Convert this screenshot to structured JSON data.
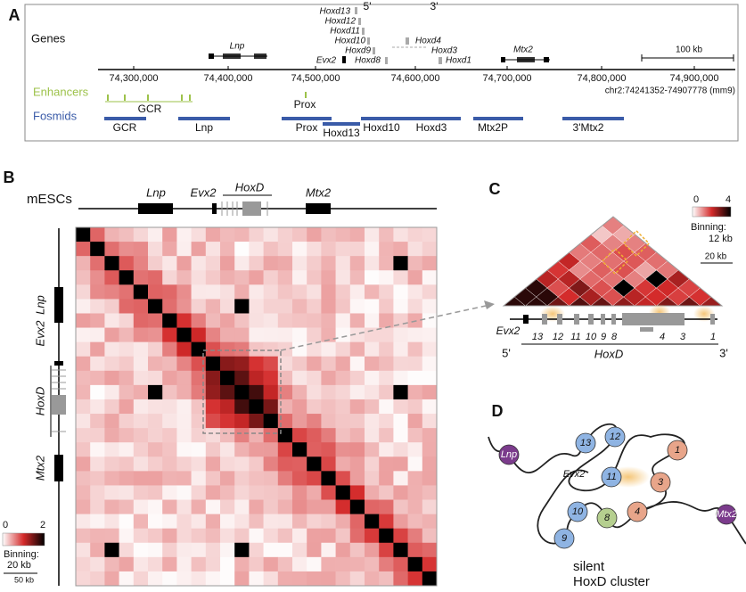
{
  "panel_a": {
    "label": "A",
    "genes_heading": "Genes",
    "genes": [
      "Lnp",
      "Hoxd13",
      "Hoxd12",
      "Hoxd11",
      "Hoxd10",
      "Hoxd9",
      "Hoxd8",
      "Evx2",
      "Hoxd4",
      "Hoxd3",
      "Hoxd1",
      "Mtx2"
    ],
    "five_prime": "5'",
    "three_prime": "3'",
    "scale_bar": "100 kb",
    "coordinates": [
      "74,300,000",
      "74,400,000",
      "74,500,000",
      "74,600,000",
      "74,700,000",
      "74,800,000",
      "74,900,000"
    ],
    "assembly": "chr2:74241352-74907778 (mm9)",
    "enhancers_heading": "Enhancers",
    "enhancers": [
      "GCR",
      "Prox"
    ],
    "fosmids_heading": "Fosmids",
    "fosmids": [
      "GCR",
      "Lnp",
      "Prox",
      "Hoxd13",
      "Hoxd10",
      "Hoxd3",
      "Mtx2P",
      "3'Mtx2"
    ]
  },
  "panel_b": {
    "label": "B",
    "cell_type": "mESCs",
    "track_genes": [
      "Lnp",
      "Evx2",
      "HoxD",
      "Mtx2"
    ],
    "side_genes": [
      "Lnp",
      "Evx2",
      "HoxD",
      "Mtx2"
    ],
    "color_min": 0,
    "color_max": 2,
    "binning_label": "Binning:",
    "binning": "20 kb",
    "scale_bar": "50 kb"
  },
  "panel_c": {
    "label": "C",
    "color_min": 0,
    "color_max": 4,
    "binning_label": "Binning:",
    "binning": "12 kb",
    "scale_bar": "20 kb",
    "genes": [
      "13",
      "12",
      "11",
      "10",
      "9",
      "8",
      "4",
      "3",
      "1"
    ],
    "evx2": "Evx2",
    "five_prime": "5'",
    "cluster": "HoxD",
    "three_prime": "3'"
  },
  "panel_d": {
    "label": "D",
    "nodes": [
      "Lnp",
      "13",
      "12",
      "Evx2",
      "11",
      "1",
      "3",
      "10",
      "8",
      "4",
      "9",
      "Mtx2"
    ],
    "caption": [
      "silent",
      "HoxD cluster"
    ]
  }
}
